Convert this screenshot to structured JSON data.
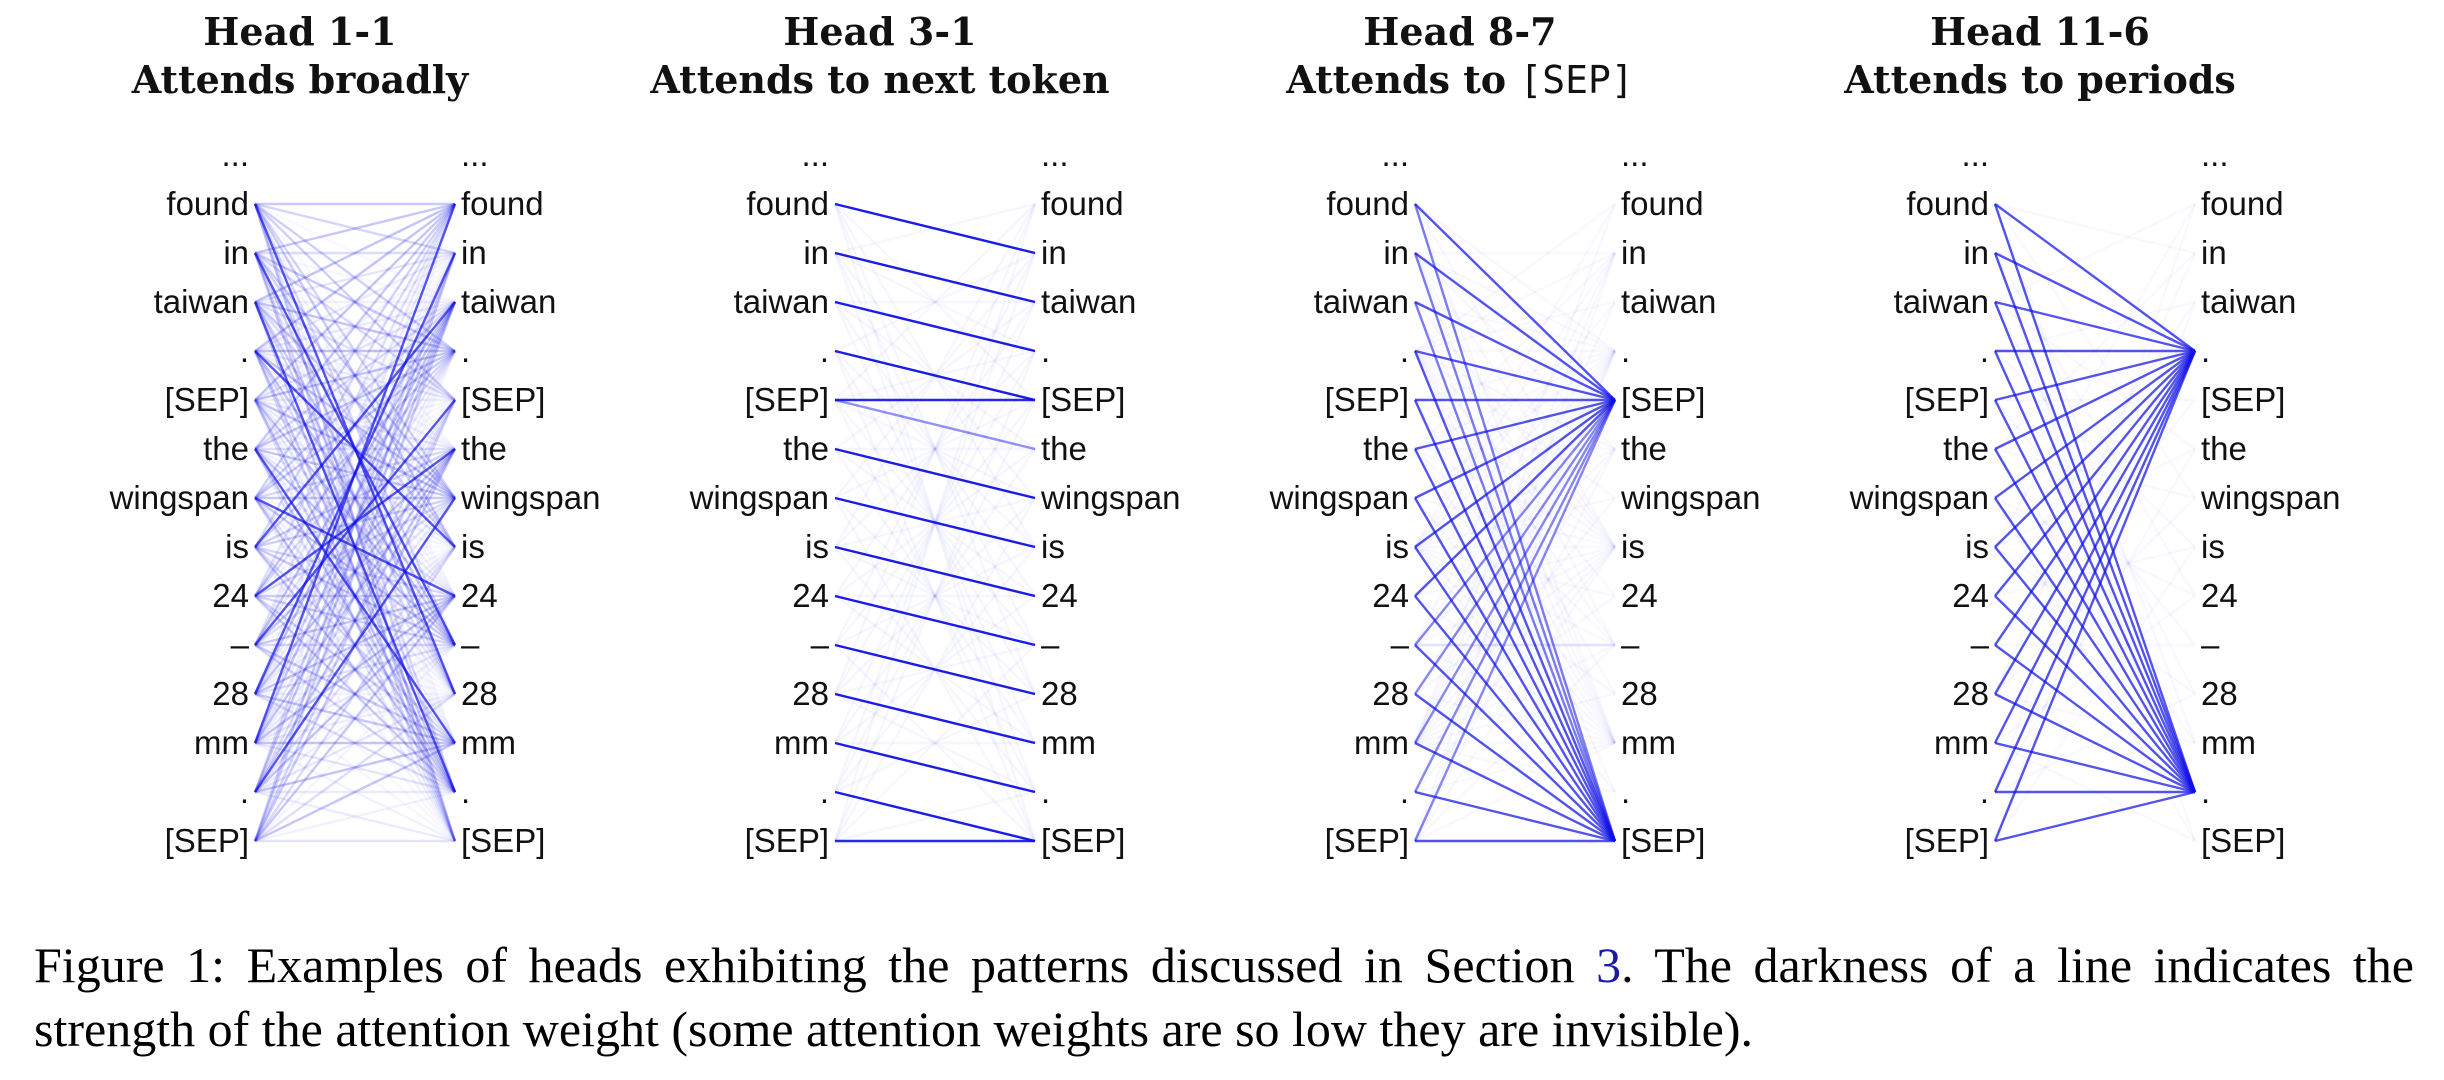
{
  "tokens": [
    "...",
    "found",
    "in",
    "taiwan",
    ".",
    "[SEP]",
    "the",
    "wingspan",
    "is",
    "24",
    "–",
    "28",
    "mm",
    ".",
    "[SEP]"
  ],
  "line_color": "#1010e6",
  "panels": [
    {
      "title": "Head 1-1",
      "subtitle": "Attends broadly",
      "pattern": "broad"
    },
    {
      "title": "Head 3-1",
      "subtitle_prefix": "Attends to next token",
      "subtitle_code": "",
      "pattern": "next"
    },
    {
      "title": "Head 8-7",
      "subtitle_prefix": "Attends to ",
      "subtitle_code": "[SEP]",
      "pattern": "sep"
    },
    {
      "title": "Head 11-6",
      "subtitle": "Attends to periods",
      "pattern": "period"
    }
  ],
  "caption": {
    "line1_a": "Figure 1: Examples of heads exhibiting the patterns discussed in Section ",
    "line1_ref": "3",
    "line1_b": ". The darkness of a line indicates the",
    "line2": "strength of the attention weight (some attention weights are so low they are invisible)."
  }
}
